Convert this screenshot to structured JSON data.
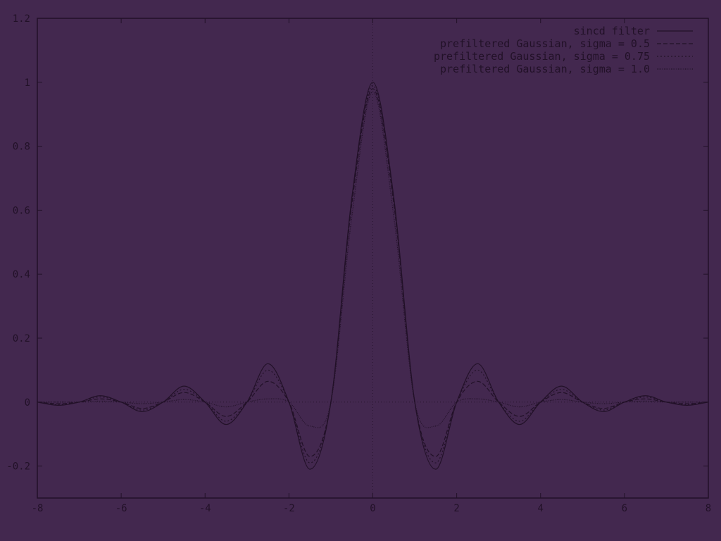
{
  "colors": {
    "background": "#43284f",
    "ink": "#221128"
  },
  "chart_data": {
    "type": "line",
    "title": "",
    "xlabel": "",
    "ylabel": "",
    "xlim": [
      -8,
      8
    ],
    "ylim": [
      -0.3,
      1.2
    ],
    "x_ticks": [
      "-8",
      "-6",
      "-4",
      "-2",
      "0",
      "2",
      "4",
      "6",
      "8"
    ],
    "y_ticks": [
      "-0.2",
      "0",
      "0.2",
      "0.4",
      "0.6",
      "0.8",
      "1",
      "1.2"
    ],
    "grid": false,
    "zero_axes": true,
    "legend_position": "top-right",
    "series": [
      {
        "name": "sincd filter",
        "dash": "solid",
        "x": [
          -8,
          -7.5,
          -7,
          -6.5,
          -6,
          -5.5,
          -5,
          -4.5,
          -4,
          -3.5,
          -3,
          -2.5,
          -2,
          -1.5,
          -1,
          -0.5,
          0,
          0.5,
          1,
          1.5,
          2,
          2.5,
          3,
          3.5,
          4,
          4.5,
          5,
          5.5,
          6,
          6.5,
          7,
          7.5,
          8
        ],
        "y": [
          0,
          -0.01,
          0,
          0.02,
          0,
          -0.03,
          0,
          0.05,
          0,
          -0.07,
          0,
          0.12,
          0,
          -0.21,
          0,
          0.64,
          1,
          0.64,
          0,
          -0.21,
          0,
          0.12,
          0,
          -0.07,
          0,
          0.05,
          0,
          -0.03,
          0,
          0.02,
          0,
          -0.01,
          0
        ]
      },
      {
        "name": "prefiltered Gaussian, sigma = 0.5",
        "dash": "dashed",
        "x": [
          -8,
          -7.5,
          -7,
          -6.5,
          -6,
          -5.5,
          -5,
          -4.5,
          -4,
          -3.5,
          -3,
          -2.5,
          -2,
          -1.5,
          -1,
          -0.5,
          0,
          0.5,
          1,
          1.5,
          2,
          2.5,
          3,
          3.5,
          4,
          4.5,
          5,
          5.5,
          6,
          6.5,
          7,
          7.5,
          8
        ],
        "y": [
          0,
          -0.005,
          0,
          0.01,
          0,
          -0.02,
          0,
          0.03,
          0,
          -0.045,
          0,
          0.065,
          0,
          -0.17,
          0,
          0.62,
          0.98,
          0.62,
          0,
          -0.17,
          0,
          0.065,
          0,
          -0.045,
          0,
          0.03,
          0,
          -0.02,
          0,
          0.01,
          0,
          -0.005,
          0
        ]
      },
      {
        "name": "prefiltered Gaussian, sigma = 0.75",
        "dash": "dotted",
        "x": [
          -8,
          -7.5,
          -7,
          -6.5,
          -6,
          -5.5,
          -5,
          -4.5,
          -4,
          -3.5,
          -3,
          -2.5,
          -2,
          -1.5,
          -1,
          -0.5,
          0,
          0.5,
          1,
          1.5,
          2,
          2.5,
          3,
          3.5,
          4,
          4.5,
          5,
          5.5,
          6,
          6.5,
          7,
          7.5,
          8
        ],
        "y": [
          0,
          -0.008,
          0,
          0.016,
          0,
          -0.025,
          0,
          0.04,
          0,
          -0.06,
          0,
          0.1,
          0,
          -0.19,
          0,
          0.63,
          0.99,
          0.63,
          0,
          -0.19,
          0,
          0.1,
          0,
          -0.06,
          0,
          0.04,
          0,
          -0.025,
          0,
          0.016,
          0,
          -0.008,
          0
        ]
      },
      {
        "name": "prefiltered Gaussian, sigma = 1.0",
        "dash": "dense-dotted",
        "x": [
          -8,
          -7.5,
          -7,
          -6.5,
          -6,
          -5.5,
          -5,
          -4.5,
          -4,
          -3.5,
          -3,
          -2.5,
          -2,
          -1.5,
          -1,
          -0.5,
          0,
          0.5,
          1,
          1.5,
          2,
          2.5,
          3,
          3.5,
          4,
          4.5,
          5,
          5.5,
          6,
          6.5,
          7,
          7.5,
          8
        ],
        "y": [
          0,
          0,
          0,
          0.003,
          0,
          -0.005,
          0,
          0.008,
          0,
          -0.015,
          0,
          0.01,
          0,
          -0.075,
          0,
          0.58,
          0.97,
          0.58,
          0,
          -0.075,
          0,
          0.01,
          0,
          -0.015,
          0,
          0.008,
          0,
          -0.005,
          0,
          0.003,
          0,
          0,
          0
        ]
      }
    ]
  }
}
